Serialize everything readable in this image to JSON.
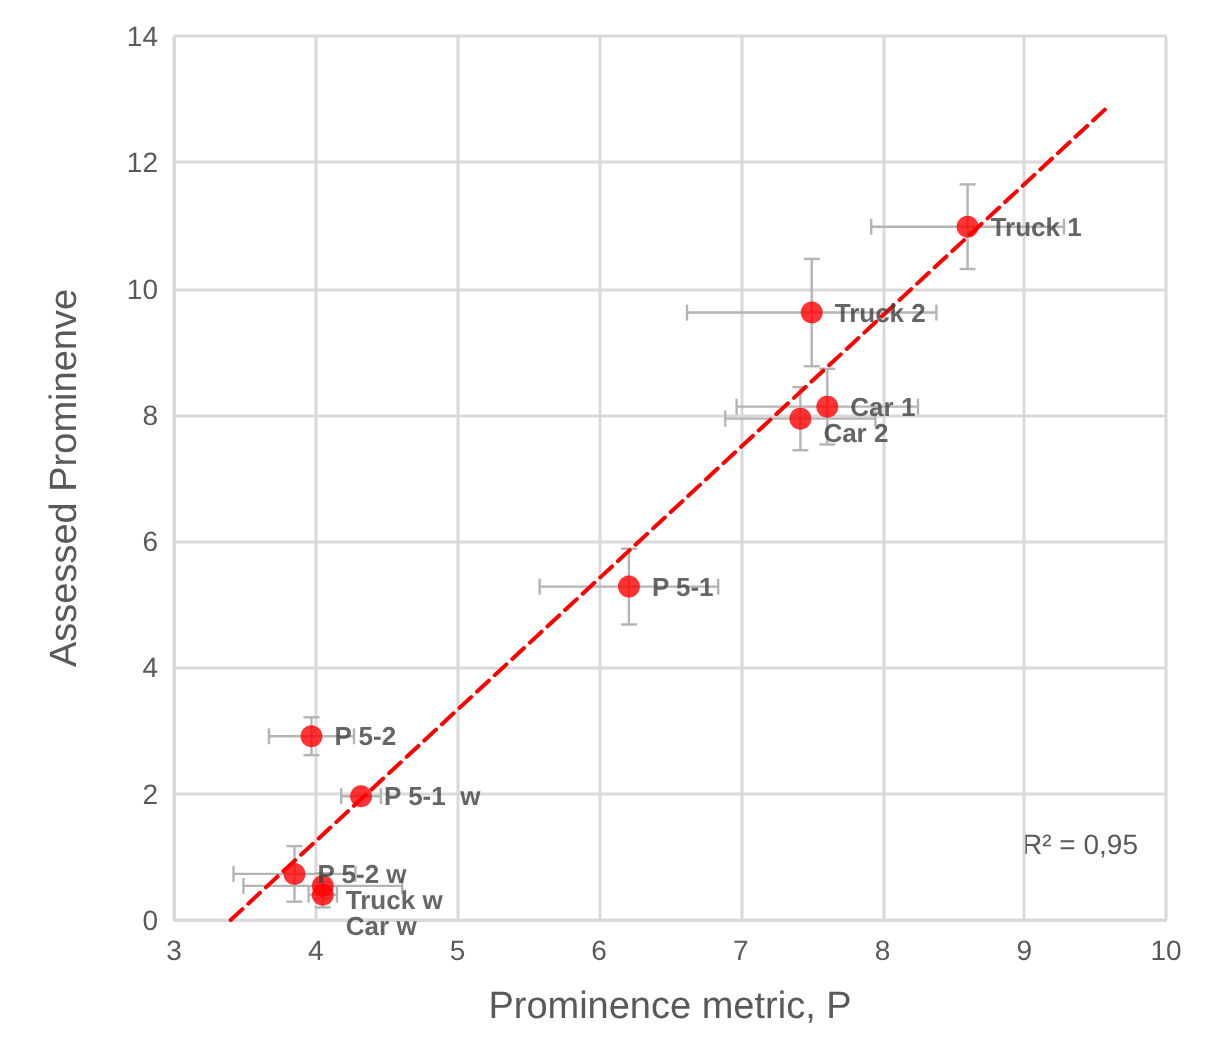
{
  "chart_data": {
    "type": "scatter",
    "xlabel": "Prominence metric, P",
    "ylabel": "Assessed Prominenve",
    "xlim": [
      3,
      10
    ],
    "xticks": [
      3,
      4,
      5,
      6,
      7,
      8,
      9,
      10
    ],
    "ylim": [
      0,
      14
    ],
    "yticks": [
      0,
      2,
      4,
      6,
      8,
      10,
      12,
      14
    ],
    "grid": true,
    "annotations": [
      "R² = 0,95"
    ],
    "series": [
      {
        "color": "#ff0000",
        "marker": "circle",
        "x": [
          8.6,
          7.5,
          7.61,
          7.42,
          6.21,
          3.97,
          4.32,
          3.85,
          4.05,
          4.05
        ],
        "values": [
          10.98,
          9.62,
          8.13,
          7.94,
          5.28,
          2.91,
          1.96,
          0.73,
          0.54,
          0.4
        ],
        "value_labels": [
          "Truck 1",
          "Truck 2",
          "Car 1",
          "Car 2",
          "P 5-1",
          "P 5-2",
          "P 5-1  w",
          "P 5-2 w",
          "Truck w",
          "Car w"
        ],
        "errors": [
          0.67,
          0.85,
          0.6,
          0.5,
          0.6,
          0.3,
          null,
          0.44,
          0.2,
          0.2
        ],
        "xerrors": [
          0.68,
          0.88,
          0.64,
          0.53,
          0.63,
          0.3,
          0.14,
          0.43,
          0.56,
          0.1
        ]
      },
      {
        "type": "line",
        "color": "#ff0000",
        "line_style": "dashed",
        "marker": "none",
        "x": [
          3.4,
          9.6
        ],
        "values": [
          0,
          12.9
        ]
      }
    ]
  }
}
